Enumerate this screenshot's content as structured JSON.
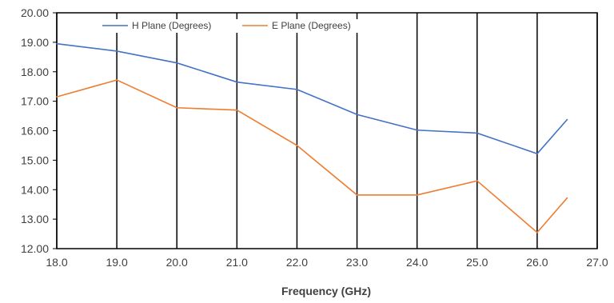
{
  "chart_data": {
    "type": "line",
    "xlabel": "Frequency (GHz)",
    "ylabel": "",
    "xlim": [
      18.0,
      27.0
    ],
    "ylim": [
      12.0,
      20.0
    ],
    "x_ticks": [
      "18.0",
      "19.0",
      "20.0",
      "21.0",
      "22.0",
      "23.0",
      "24.0",
      "25.0",
      "26.0",
      "27.0"
    ],
    "y_ticks": [
      "12.00",
      "13.00",
      "14.00",
      "15.00",
      "16.00",
      "17.00",
      "18.00",
      "19.00",
      "20.00"
    ],
    "grid": "vertical",
    "legend_position": "top-left",
    "series": [
      {
        "name": "H Plane (Degrees)",
        "color": "#4472C4",
        "x": [
          18.0,
          19.0,
          20.0,
          21.0,
          22.0,
          23.0,
          24.0,
          25.0,
          26.0,
          26.5
        ],
        "values": [
          18.95,
          18.7,
          18.3,
          17.65,
          17.4,
          16.55,
          16.02,
          15.92,
          15.22,
          16.38
        ]
      },
      {
        "name": "E Plane (Degrees)",
        "color": "#ED7D31",
        "x": [
          18.0,
          19.0,
          20.0,
          21.0,
          22.0,
          23.0,
          24.0,
          25.0,
          26.0,
          26.5
        ],
        "values": [
          17.15,
          17.72,
          16.78,
          16.7,
          15.5,
          13.82,
          13.82,
          14.3,
          12.55,
          13.72
        ]
      }
    ]
  }
}
